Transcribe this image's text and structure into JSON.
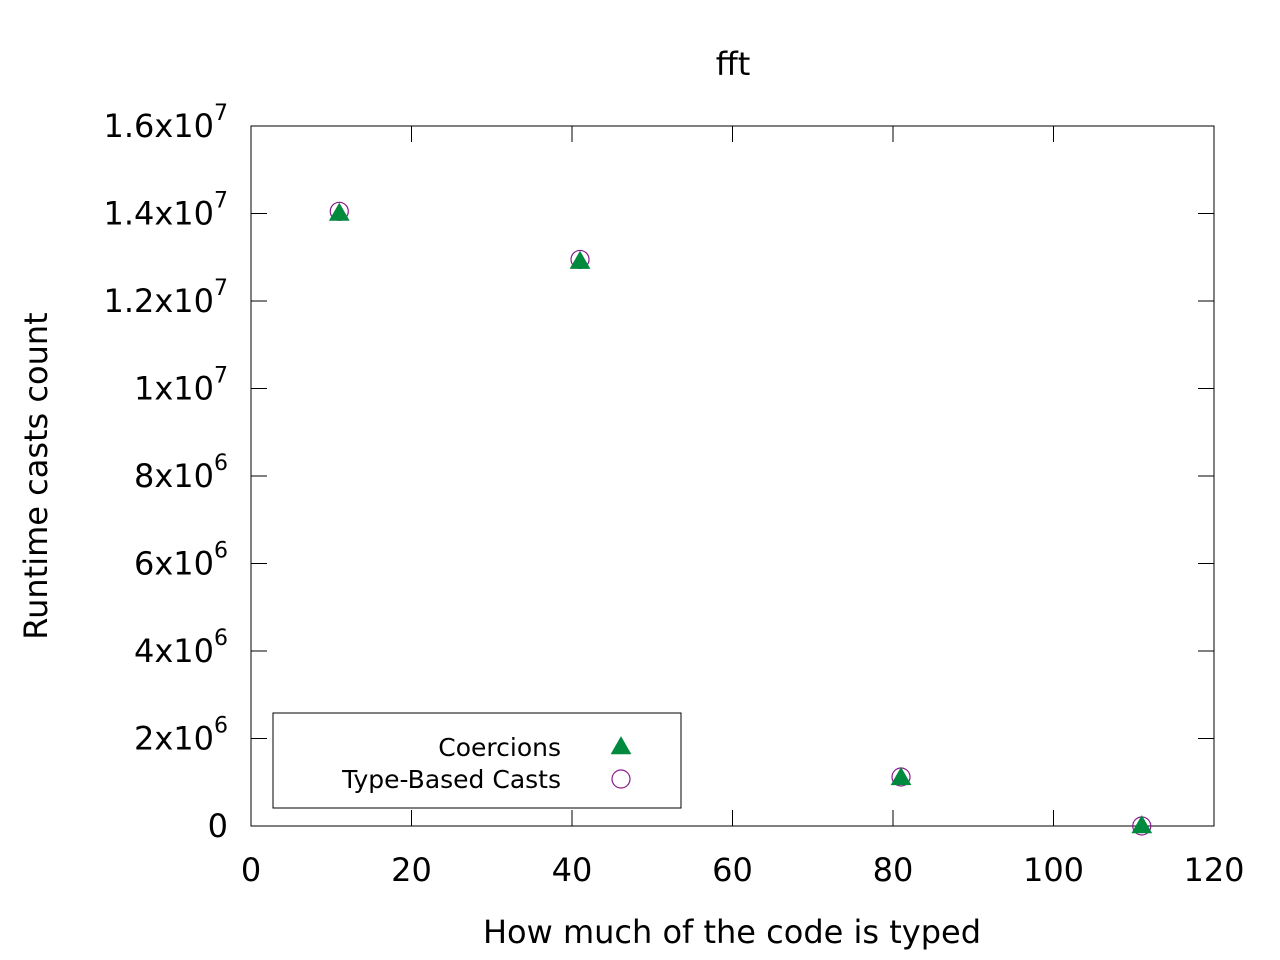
{
  "chart_data": {
    "type": "scatter",
    "title": "fft",
    "xlabel": "How much of the code is typed",
    "ylabel": "Runtime casts count",
    "xlim": [
      0,
      120
    ],
    "ylim": [
      0,
      16000000
    ],
    "x_ticks": [
      {
        "value": 0,
        "label": "0"
      },
      {
        "value": 20,
        "label": "20"
      },
      {
        "value": 40,
        "label": "40"
      },
      {
        "value": 60,
        "label": "60"
      },
      {
        "value": 80,
        "label": "80"
      },
      {
        "value": 100,
        "label": "100"
      },
      {
        "value": 120,
        "label": "120"
      }
    ],
    "y_ticks": [
      {
        "value": 0,
        "mantissa": "0",
        "exponent": ""
      },
      {
        "value": 2000000,
        "mantissa": "2x10",
        "exponent": "6"
      },
      {
        "value": 4000000,
        "mantissa": "4x10",
        "exponent": "6"
      },
      {
        "value": 6000000,
        "mantissa": "6x10",
        "exponent": "6"
      },
      {
        "value": 8000000,
        "mantissa": "8x10",
        "exponent": "6"
      },
      {
        "value": 10000000,
        "mantissa": "1x10",
        "exponent": "7"
      },
      {
        "value": 12000000,
        "mantissa": "1.2x10",
        "exponent": "7"
      },
      {
        "value": 14000000,
        "mantissa": "1.4x10",
        "exponent": "7"
      },
      {
        "value": 16000000,
        "mantissa": "1.6x10",
        "exponent": "7"
      }
    ],
    "grid": false,
    "legend_position": "bottom-left",
    "series": [
      {
        "name": "Coercions",
        "marker": "filled-triangle",
        "color": "#008a3e",
        "points": [
          {
            "x": 11,
            "y": 14000000
          },
          {
            "x": 41,
            "y": 12900000
          },
          {
            "x": 81,
            "y": 1100000
          },
          {
            "x": 111,
            "y": 0
          }
        ]
      },
      {
        "name": "Type-Based Casts",
        "marker": "open-circle",
        "color": "#8b1a8b",
        "points": [
          {
            "x": 11,
            "y": 14050000
          },
          {
            "x": 41,
            "y": 12950000
          },
          {
            "x": 81,
            "y": 1120000
          },
          {
            "x": 111,
            "y": 0
          }
        ]
      }
    ]
  }
}
